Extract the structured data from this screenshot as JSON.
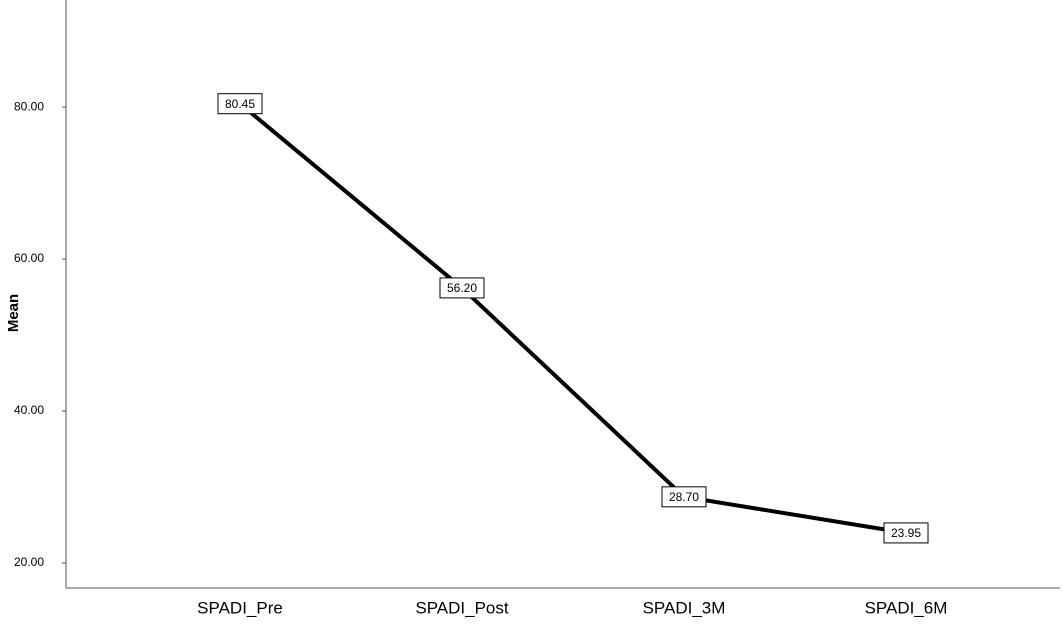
{
  "chart_data": {
    "type": "line",
    "y_label": "Mean",
    "categories": [
      "SPADI_Pre",
      "SPADI_Post",
      "SPADI_3M",
      "SPADI_6M"
    ],
    "values": [
      80.45,
      56.2,
      28.7,
      23.95
    ],
    "value_labels": [
      "80.45",
      "56.20",
      "28.70",
      "23.95"
    ],
    "color": "#000000",
    "ylim": [
      16.7,
      94.1
    ],
    "yticks": [
      {
        "value": 20,
        "label": "20.00"
      },
      {
        "value": 40,
        "label": "40.00"
      },
      {
        "value": 60,
        "label": "60.00"
      },
      {
        "value": 80,
        "label": "80.00"
      }
    ],
    "grid": false
  }
}
